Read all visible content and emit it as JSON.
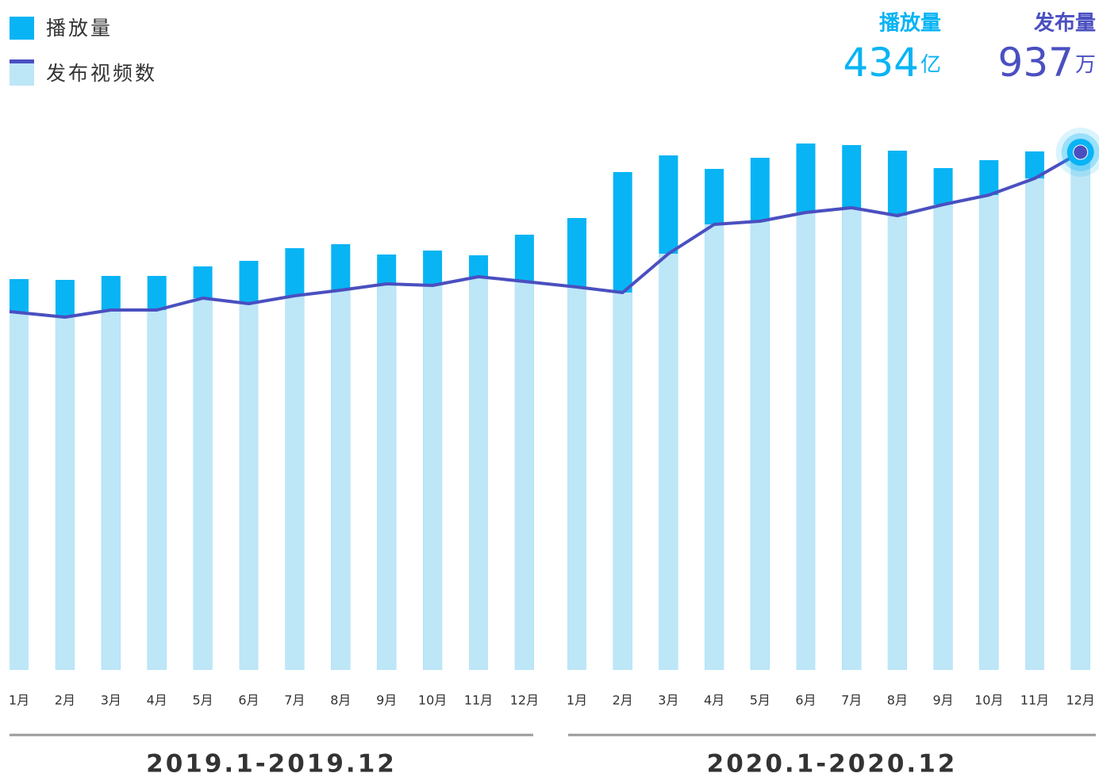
{
  "chart_data": {
    "type": "bar-line",
    "categories": [
      "1月",
      "2月",
      "3月",
      "4月",
      "5月",
      "6月",
      "7月",
      "8月",
      "9月",
      "10月",
      "11月",
      "12月",
      "1月",
      "2月",
      "3月",
      "4月",
      "5月",
      "6月",
      "7月",
      "8月",
      "9月",
      "10月",
      "11月",
      "12月"
    ],
    "periods": [
      "2019.1-2019.12",
      "2020.1-2020.12"
    ],
    "series": [
      {
        "name": "播放量",
        "color": "#08b4f4",
        "values": [
          493,
          492,
          497,
          497,
          509,
          516,
          532,
          537,
          524,
          529,
          523,
          549,
          570,
          628,
          649,
          632,
          646,
          664,
          662,
          655,
          633,
          643,
          654,
          655
        ]
      },
      {
        "name": "发布视频数",
        "color": "#4a4fc0",
        "bar_color": "#bde6f7",
        "values": [
          452,
          445,
          454,
          454,
          469,
          462,
          472,
          479,
          487,
          485,
          496,
          490,
          483,
          476,
          525,
          562,
          566,
          577,
          583,
          573,
          587,
          599,
          620,
          653
        ]
      }
    ],
    "ylim": [
      0,
      700
    ],
    "stats": [
      {
        "label": "播放量",
        "value": 434,
        "unit": "亿",
        "color": "#08b4f4"
      },
      {
        "label": "发布量",
        "value": 937,
        "unit": "万",
        "color": "#4a4fc0"
      }
    ]
  }
}
